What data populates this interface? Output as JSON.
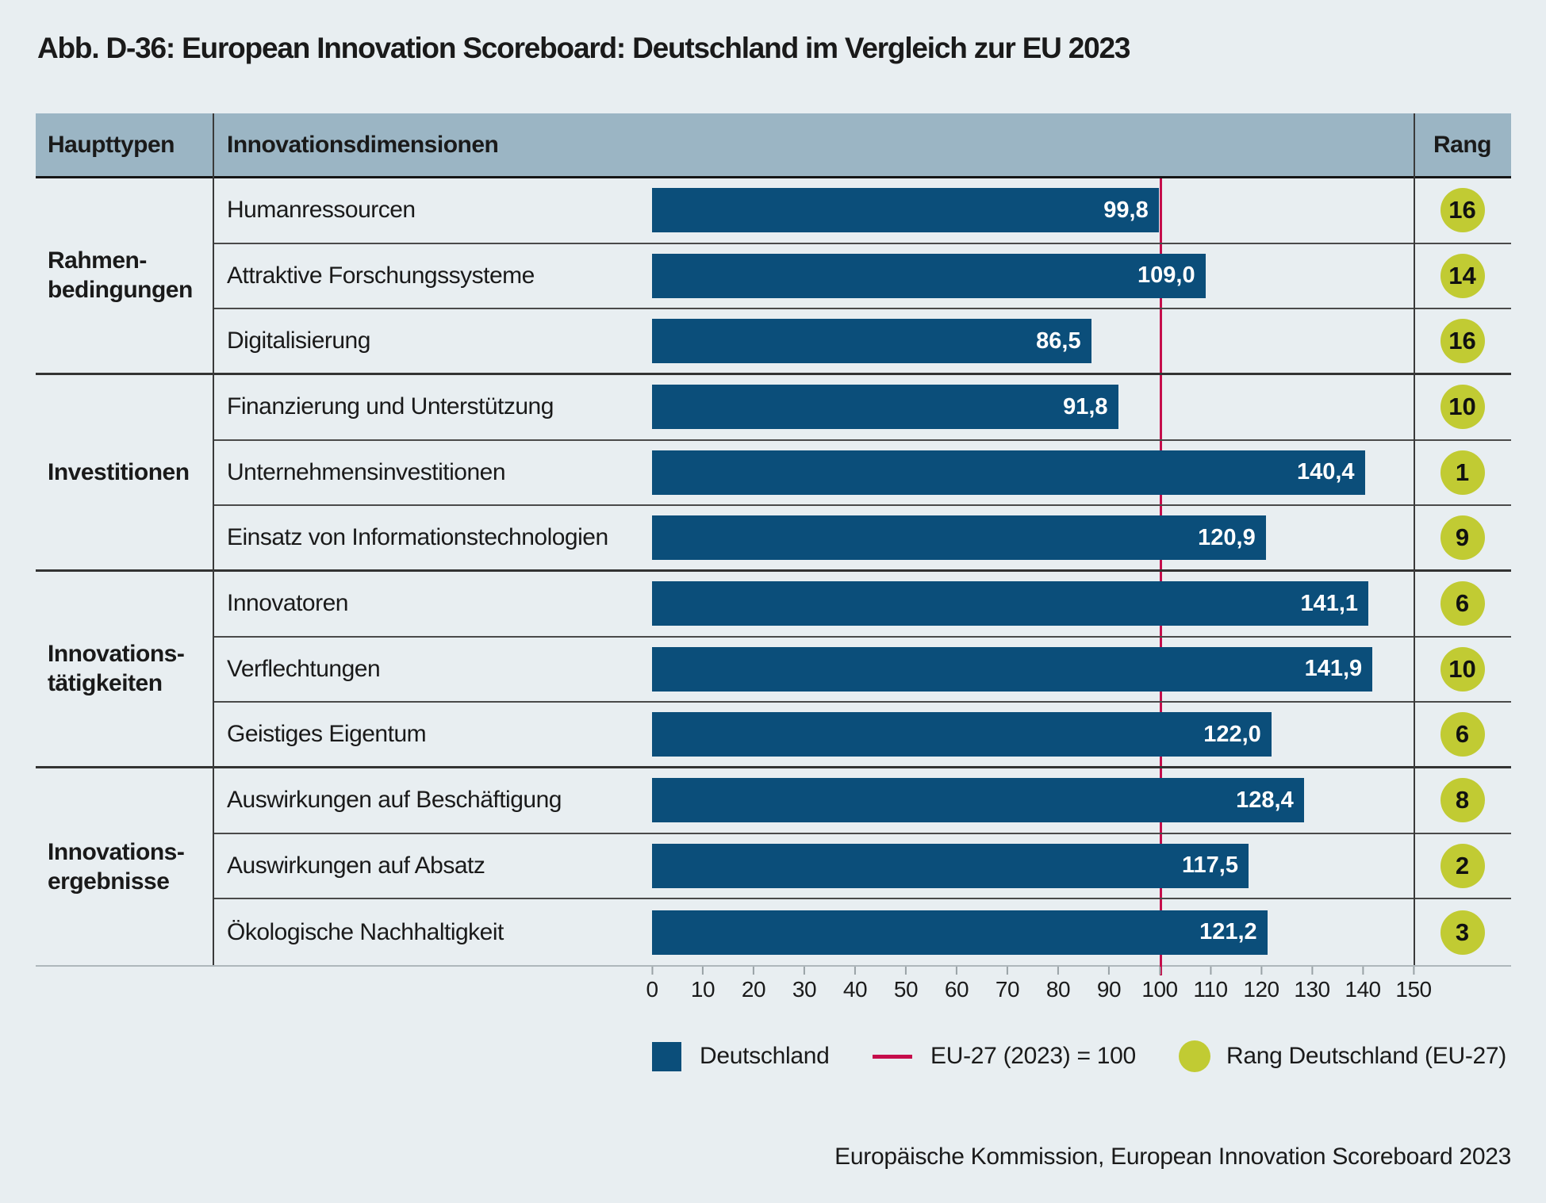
{
  "title": "Abb. D-36: European Innovation Scoreboard: Deutschland im Vergleich zur EU 2023",
  "table": {
    "col1_header": "Haupttypen",
    "col2_header": "Innovationsdimensionen",
    "col3_header": "Rang",
    "header_bg": "#9bb5c4"
  },
  "chart_data": {
    "type": "bar",
    "orientation": "horizontal",
    "title": "European Innovation Scoreboard: Deutschland im Vergleich zur EU 2023",
    "xlabel": "",
    "ylabel": "",
    "xlim": [
      0,
      150
    ],
    "xticks": [
      "0",
      "10",
      "20",
      "30",
      "40",
      "50",
      "60",
      "70",
      "80",
      "90",
      "100",
      "110",
      "120",
      "130",
      "140",
      "150"
    ],
    "grid": false,
    "bar_color": "#0b4e7a",
    "rank_color": "#c1cb33",
    "reference_line": {
      "value": 100,
      "color": "#c50d4b",
      "label": "EU-27 (2023) = 100"
    },
    "groups": [
      {
        "label_line1": "Rahmen-",
        "label_line2": "bedingungen",
        "rows": [
          {
            "dimension": "Humanressourcen",
            "value": 99.8,
            "value_label": "99,8",
            "rank": "16"
          },
          {
            "dimension": "Attraktive Forschungssysteme",
            "value": 109.0,
            "value_label": "109,0",
            "rank": "14"
          },
          {
            "dimension": "Digitalisierung",
            "value": 86.5,
            "value_label": "86,5",
            "rank": "16"
          }
        ]
      },
      {
        "label_line1": "Investitionen",
        "label_line2": "",
        "rows": [
          {
            "dimension": "Finanzierung und Unterstützung",
            "value": 91.8,
            "value_label": "91,8",
            "rank": "10"
          },
          {
            "dimension": "Unternehmensinvestitionen",
            "value": 140.4,
            "value_label": "140,4",
            "rank": "1"
          },
          {
            "dimension": "Einsatz von Informationstechnologien",
            "value": 120.9,
            "value_label": "120,9",
            "rank": "9"
          }
        ]
      },
      {
        "label_line1": "Innovations-",
        "label_line2": "tätigkeiten",
        "rows": [
          {
            "dimension": "Innovatoren",
            "value": 141.1,
            "value_label": "141,1",
            "rank": "6"
          },
          {
            "dimension": "Verflechtungen",
            "value": 141.9,
            "value_label": "141,9",
            "rank": "10"
          },
          {
            "dimension": "Geistiges Eigentum",
            "value": 122.0,
            "value_label": "122,0",
            "rank": "6"
          }
        ]
      },
      {
        "label_line1": "Innovations-",
        "label_line2": "ergebnisse",
        "rows": [
          {
            "dimension": "Auswirkungen auf Beschäftigung",
            "value": 128.4,
            "value_label": "128,4",
            "rank": "8"
          },
          {
            "dimension": "Auswirkungen auf Absatz",
            "value": 117.5,
            "value_label": "117,5",
            "rank": "2"
          },
          {
            "dimension": "Ökologische Nachhaltigkeit",
            "value": 121.2,
            "value_label": "121,2",
            "rank": "3"
          }
        ]
      }
    ],
    "legend_position": "bottom"
  },
  "legend": {
    "deutschland": "Deutschland",
    "eu": "EU-27 (2023) = 100",
    "rang": "Rang Deutschland (EU-27)"
  },
  "source": "Europäische Kommission, European Innovation Scoreboard 2023"
}
